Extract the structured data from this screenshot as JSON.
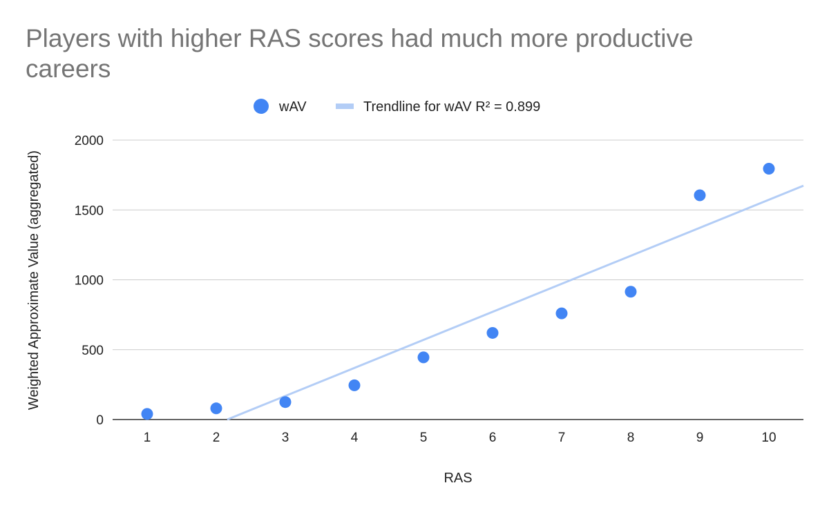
{
  "chart_data": {
    "type": "scatter",
    "title": "Players with higher RAS scores had much more productive careers",
    "xlabel": "RAS",
    "ylabel": "Weighted Approximate Value (aggregated)",
    "x": [
      1,
      2,
      3,
      4,
      5,
      6,
      7,
      8,
      9,
      10
    ],
    "series": [
      {
        "name": "wAV",
        "values": [
          40,
          80,
          125,
          245,
          445,
          620,
          760,
          915,
          1605,
          1795
        ]
      }
    ],
    "trendline": {
      "label": "Trendline for wAV R² = 0.899",
      "slope": 200.6,
      "intercept": -433
    },
    "xlim": [
      0.5,
      10.5
    ],
    "ylim": [
      0,
      2000
    ],
    "xticks": [
      "1",
      "2",
      "3",
      "4",
      "5",
      "6",
      "7",
      "8",
      "9",
      "10"
    ],
    "yticks": [
      "0",
      "500",
      "1000",
      "1500",
      "2000"
    ],
    "grid": true,
    "legend_position": "top",
    "colors": {
      "points": "#4285f4",
      "trendline": "#b3cdf6"
    }
  }
}
